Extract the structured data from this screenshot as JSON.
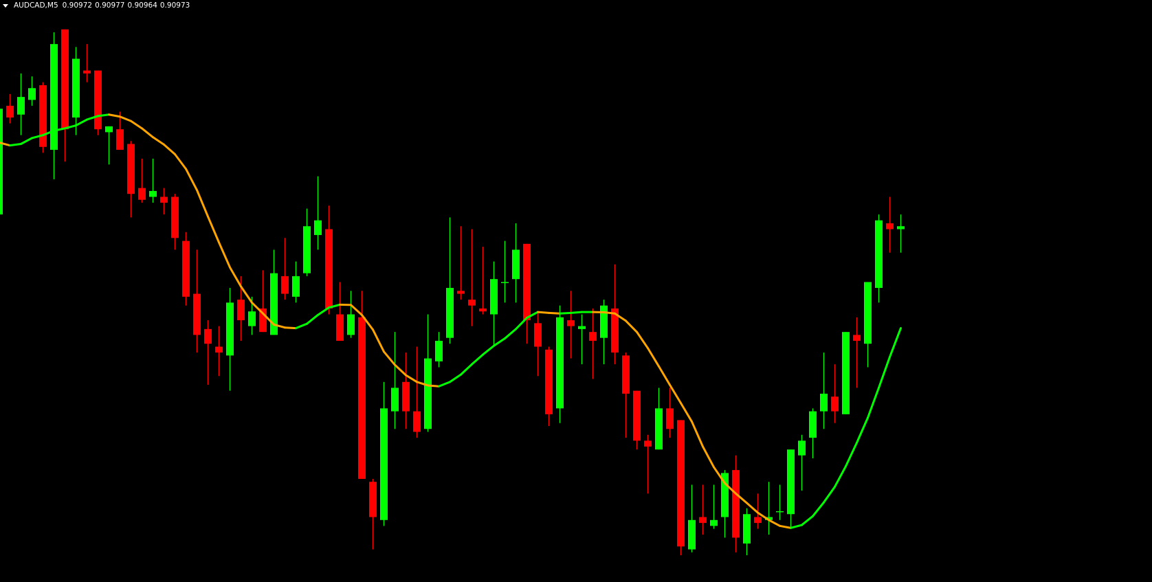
{
  "header": {
    "symbol": "AUDCAD,M5",
    "open": "0.90972",
    "high": "0.90977",
    "low": "0.90964",
    "close": "0.90973"
  },
  "colors": {
    "background": "#000000",
    "bull": "#00FF00",
    "bear": "#FF0000",
    "ma_rising": "#00FF00",
    "ma_falling": "#FFA500",
    "header_text": "#FFFFFF"
  },
  "chart_data": {
    "type": "candlestick",
    "title": "AUDCAD,M5",
    "ylim": [
      0.908519,
      0.9105
    ],
    "grid": false,
    "fields": [
      "open",
      "high",
      "low",
      "close"
    ],
    "ohlc": [
      [
        0.90977,
        0.91013,
        0.90977,
        0.91013
      ],
      [
        0.91014,
        0.91018,
        0.91008,
        0.9101
      ],
      [
        0.91011,
        0.91025,
        0.91004,
        0.91017
      ],
      [
        0.91016,
        0.91024,
        0.91014,
        0.9102
      ],
      [
        0.91021,
        0.91022,
        0.90998,
        0.91
      ],
      [
        0.90999,
        0.91039,
        0.90989,
        0.91035
      ],
      [
        0.9104,
        0.9104,
        0.90995,
        0.91006
      ],
      [
        0.9101,
        0.91034,
        0.91004,
        0.9103
      ],
      [
        0.91026,
        0.91035,
        0.91022,
        0.91025
      ],
      [
        0.91026,
        0.91026,
        0.91004,
        0.91006
      ],
      [
        0.91005,
        0.91007,
        0.90994,
        0.91007
      ],
      [
        0.91006,
        0.91012,
        0.90999,
        0.90999
      ],
      [
        0.91001,
        0.91002,
        0.90976,
        0.90984
      ],
      [
        0.90986,
        0.90996,
        0.90981,
        0.90982
      ],
      [
        0.90983,
        0.90996,
        0.90981,
        0.90985
      ],
      [
        0.90983,
        0.90986,
        0.90977,
        0.90981
      ],
      [
        0.90983,
        0.90984,
        0.90965,
        0.90969
      ],
      [
        0.90968,
        0.90971,
        0.90946,
        0.90949
      ],
      [
        0.9095,
        0.90965,
        0.9093,
        0.90936
      ],
      [
        0.90938,
        0.90941,
        0.90919,
        0.90933
      ],
      [
        0.90932,
        0.90939,
        0.90922,
        0.9093
      ],
      [
        0.90929,
        0.90952,
        0.90917,
        0.90947
      ],
      [
        0.90948,
        0.90956,
        0.90934,
        0.90941
      ],
      [
        0.90939,
        0.90949,
        0.90936,
        0.90944
      ],
      [
        0.90945,
        0.90958,
        0.90937,
        0.90937
      ],
      [
        0.90936,
        0.90965,
        0.90936,
        0.90957
      ],
      [
        0.90956,
        0.90969,
        0.90948,
        0.9095
      ],
      [
        0.90949,
        0.90961,
        0.90947,
        0.90956
      ],
      [
        0.90957,
        0.90979,
        0.90956,
        0.90973
      ],
      [
        0.9097,
        0.9099,
        0.90965,
        0.90975
      ],
      [
        0.90972,
        0.9098,
        0.90943,
        0.90945
      ],
      [
        0.90943,
        0.90954,
        0.90934,
        0.90934
      ],
      [
        0.90936,
        0.90951,
        0.90935,
        0.90943
      ],
      [
        0.90942,
        0.90951,
        0.90887,
        0.90887
      ],
      [
        0.90886,
        0.90887,
        0.90863,
        0.90874
      ],
      [
        0.90873,
        0.9092,
        0.90871,
        0.90911
      ],
      [
        0.9091,
        0.90937,
        0.90904,
        0.90918
      ],
      [
        0.9092,
        0.9093,
        0.90904,
        0.9091
      ],
      [
        0.9091,
        0.90932,
        0.90901,
        0.90903
      ],
      [
        0.90904,
        0.90943,
        0.90903,
        0.90928
      ],
      [
        0.90927,
        0.90937,
        0.90925,
        0.90934
      ],
      [
        0.90935,
        0.90976,
        0.90933,
        0.90952
      ],
      [
        0.90951,
        0.90973,
        0.90948,
        0.9095
      ],
      [
        0.90948,
        0.90972,
        0.90939,
        0.90946
      ],
      [
        0.90945,
        0.90966,
        0.90943,
        0.90944
      ],
      [
        0.90943,
        0.90961,
        0.90932,
        0.90955
      ],
      [
        0.90954,
        0.90968,
        0.90947,
        0.90954
      ],
      [
        0.90955,
        0.90974,
        0.90947,
        0.90965
      ],
      [
        0.90967,
        0.90967,
        0.90933,
        0.90941
      ],
      [
        0.9094,
        0.90944,
        0.90922,
        0.90932
      ],
      [
        0.90931,
        0.90932,
        0.90905,
        0.90909
      ],
      [
        0.90911,
        0.90946,
        0.90906,
        0.90942
      ],
      [
        0.90941,
        0.90951,
        0.90928,
        0.90939
      ],
      [
        0.90938,
        0.90943,
        0.90926,
        0.90939
      ],
      [
        0.90937,
        0.90945,
        0.90921,
        0.90934
      ],
      [
        0.90935,
        0.90948,
        0.90926,
        0.90946
      ],
      [
        0.90945,
        0.9096,
        0.90926,
        0.9093
      ],
      [
        0.90929,
        0.9093,
        0.90901,
        0.90916
      ],
      [
        0.90917,
        0.90917,
        0.90897,
        0.909
      ],
      [
        0.909,
        0.90902,
        0.90882,
        0.90898
      ],
      [
        0.90897,
        0.90918,
        0.90897,
        0.90911
      ],
      [
        0.90911,
        0.90918,
        0.90901,
        0.90904
      ],
      [
        0.90907,
        0.90907,
        0.90861,
        0.90864
      ],
      [
        0.90863,
        0.90885,
        0.90862,
        0.90873
      ],
      [
        0.90874,
        0.90885,
        0.90868,
        0.90872
      ],
      [
        0.90871,
        0.90885,
        0.9087,
        0.90873
      ],
      [
        0.90874,
        0.9089,
        0.90867,
        0.90889
      ],
      [
        0.9089,
        0.90895,
        0.90862,
        0.90867
      ],
      [
        0.90865,
        0.90877,
        0.90861,
        0.90875
      ],
      [
        0.90874,
        0.90882,
        0.9087,
        0.90872
      ],
      [
        0.90873,
        0.90886,
        0.90868,
        0.90874
      ],
      [
        0.90876,
        0.90885,
        0.90873,
        0.90876
      ],
      [
        0.90875,
        0.90897,
        0.9087,
        0.90897
      ],
      [
        0.90895,
        0.90902,
        0.90883,
        0.909
      ],
      [
        0.90901,
        0.90911,
        0.90894,
        0.9091
      ],
      [
        0.9091,
        0.9093,
        0.90904,
        0.90916
      ],
      [
        0.90915,
        0.90926,
        0.90906,
        0.9091
      ],
      [
        0.90909,
        0.90937,
        0.90909,
        0.90937
      ],
      [
        0.90936,
        0.90942,
        0.90918,
        0.90934
      ],
      [
        0.90933,
        0.90954,
        0.90925,
        0.90954
      ],
      [
        0.90952,
        0.90977,
        0.90947,
        0.90975
      ],
      [
        0.90974,
        0.90983,
        0.90964,
        0.90972
      ],
      [
        0.90972,
        0.90977,
        0.90964,
        0.90973
      ]
    ],
    "moving_average": [
      0.910015,
      0.910005,
      0.91001,
      0.91003,
      0.91004,
      0.910055,
      0.910063,
      0.910073,
      0.910093,
      0.910105,
      0.91011,
      0.910103,
      0.910088,
      0.910063,
      0.910033,
      0.910008,
      0.909975,
      0.909925,
      0.909853,
      0.909763,
      0.909675,
      0.90959,
      0.909525,
      0.90947,
      0.909433,
      0.909395,
      0.909385,
      0.909383,
      0.909398,
      0.909428,
      0.909453,
      0.909463,
      0.909462,
      0.909428,
      0.909378,
      0.909303,
      0.909258,
      0.909223,
      0.9092,
      0.909188,
      0.909185,
      0.9092,
      0.909225,
      0.90926,
      0.909293,
      0.909323,
      0.909348,
      0.90938,
      0.909418,
      0.909438,
      0.909435,
      0.909433,
      0.909435,
      0.909438,
      0.909438,
      0.909437,
      0.909433,
      0.909408,
      0.90937,
      0.909315,
      0.909253,
      0.90919,
      0.909128,
      0.909065,
      0.90898,
      0.90891,
      0.908855,
      0.90882,
      0.908788,
      0.908755,
      0.90873,
      0.90871,
      0.908703,
      0.908713,
      0.908743,
      0.90879,
      0.908843,
      0.908913,
      0.908993,
      0.909078,
      0.90918,
      0.909285,
      0.909383
    ]
  }
}
